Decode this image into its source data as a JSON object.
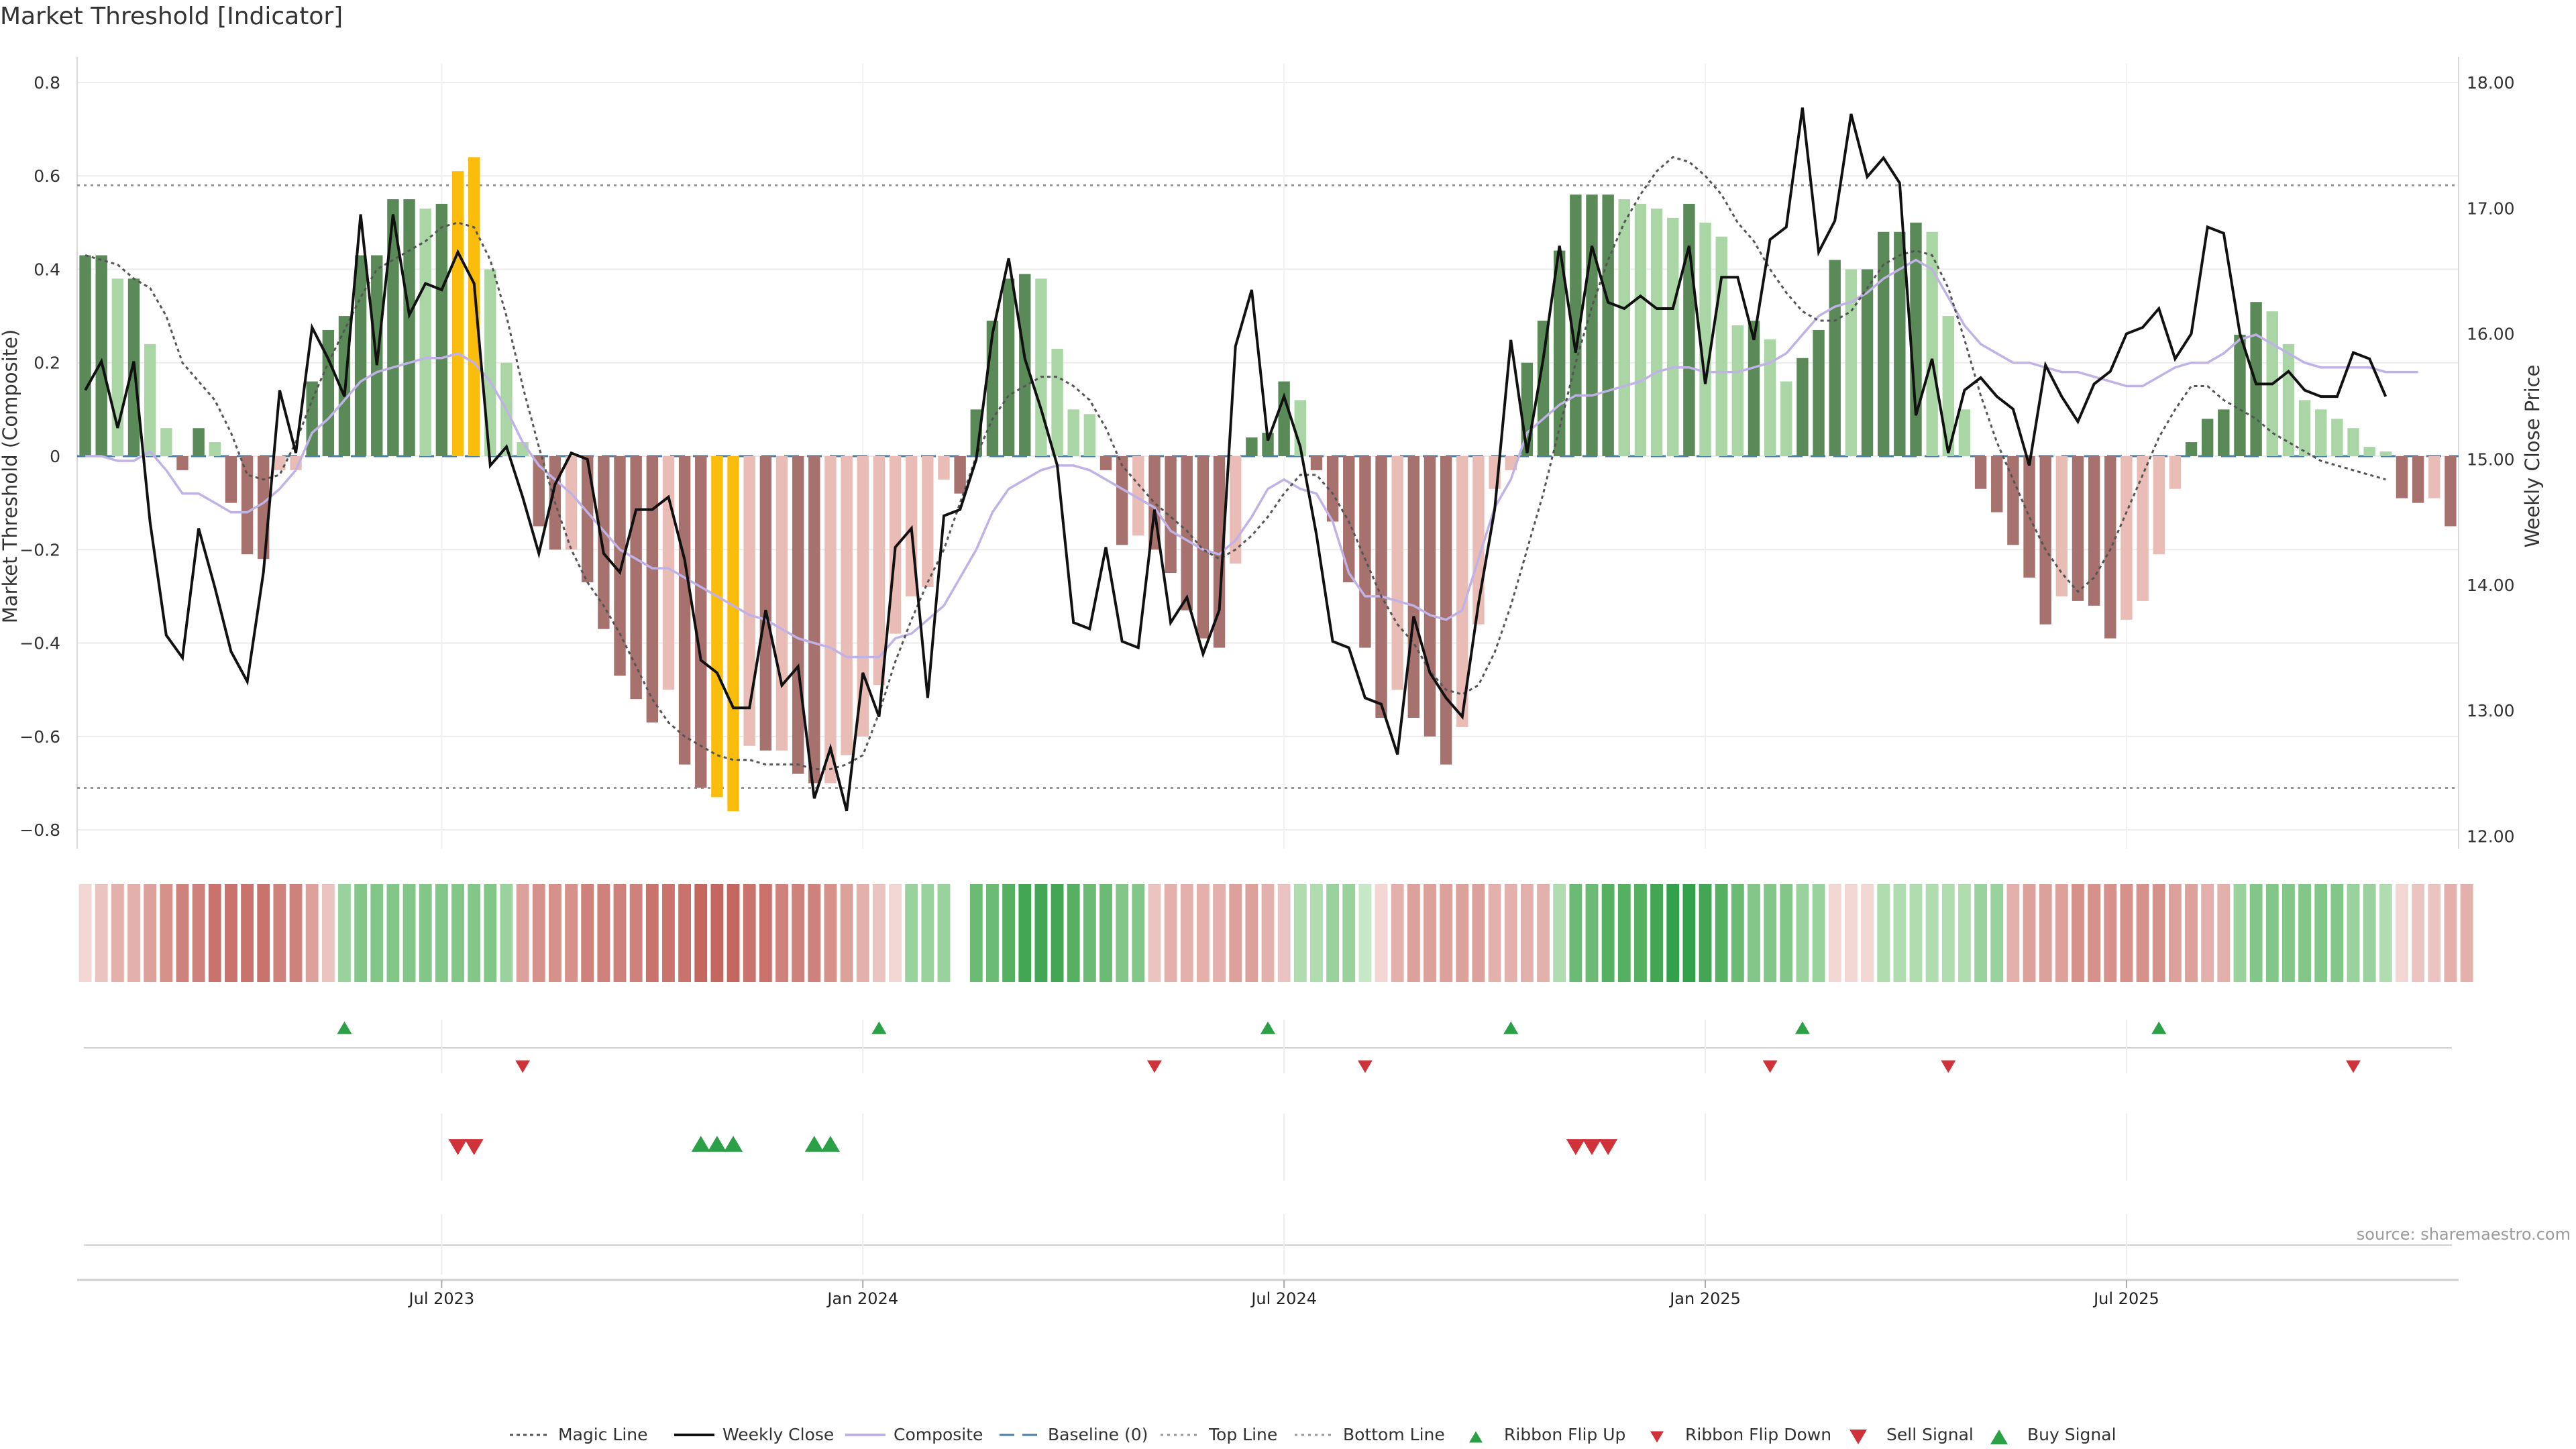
{
  "title": "Market Threshold [Indicator]",
  "source": "source: sharemaestro.com",
  "chart_data": {
    "type": "bar",
    "title": "Market Threshold [Indicator]",
    "ylabel_left": "Market Threshold (Composite)",
    "ylabel_right": "Weekly Close Price",
    "ylim_left": [
      -0.84,
      0.84
    ],
    "ylim_right": [
      11.9,
      18.15
    ],
    "left_ticks": [
      {
        "v": 0.8,
        "t": "0.8"
      },
      {
        "v": 0.6,
        "t": "0.6"
      },
      {
        "v": 0.4,
        "t": "0.4"
      },
      {
        "v": 0.2,
        "t": "0.2"
      },
      {
        "v": 0,
        "t": "0"
      },
      {
        "v": -0.2,
        "t": "−0.2"
      },
      {
        "v": -0.4,
        "t": "−0.4"
      },
      {
        "v": -0.6,
        "t": "−0.6"
      },
      {
        "v": -0.8,
        "t": "−0.8"
      }
    ],
    "right_ticks": [
      "12.00",
      "13.00",
      "14.00",
      "15.00",
      "16.00",
      "17.00",
      "18.00"
    ],
    "x_ticks": [
      {
        "i": 22,
        "t": "Jul 2023"
      },
      {
        "i": 48,
        "t": "Jan 2024"
      },
      {
        "i": 74,
        "t": "Jul 2024"
      },
      {
        "i": 100,
        "t": "Jan 2025"
      },
      {
        "i": 126,
        "t": "Jul 2025"
      }
    ],
    "top_line": 0.58,
    "bottom_line": -0.71,
    "baseline": 0,
    "composite_bars": [
      0.43,
      0.43,
      0.38,
      0.38,
      0.24,
      0.06,
      -0.03,
      0.06,
      0.03,
      -0.1,
      -0.21,
      -0.22,
      -0.03,
      -0.03,
      0.16,
      0.27,
      0.3,
      0.43,
      0.43,
      0.55,
      0.55,
      0.53,
      0.54,
      0.61,
      0.64,
      0.4,
      0.2,
      0.03,
      -0.15,
      -0.2,
      -0.2,
      -0.27,
      -0.37,
      -0.47,
      -0.52,
      -0.57,
      -0.5,
      -0.66,
      -0.71,
      -0.73,
      -0.76,
      -0.62,
      -0.63,
      -0.63,
      -0.68,
      -0.7,
      -0.7,
      -0.64,
      -0.6,
      -0.49,
      -0.38,
      -0.3,
      -0.28,
      -0.05,
      -0.08,
      0.1,
      0.29,
      0.38,
      0.39,
      0.38,
      0.23,
      0.1,
      0.09,
      -0.03,
      -0.19,
      -0.17,
      -0.2,
      -0.25,
      -0.33,
      -0.39,
      -0.41,
      -0.23,
      0.04,
      0.05,
      0.16,
      0.12,
      -0.03,
      -0.14,
      -0.27,
      -0.41,
      -0.56,
      -0.5,
      -0.56,
      -0.6,
      -0.66,
      -0.58,
      -0.36,
      -0.07,
      -0.03,
      0.2,
      0.29,
      0.44,
      0.56,
      0.56,
      0.56,
      0.55,
      0.54,
      0.53,
      0.51,
      0.54,
      0.5,
      0.47,
      0.28,
      0.29,
      0.25,
      0.16,
      0.21,
      0.27,
      0.42,
      0.4,
      0.4,
      0.48,
      0.48,
      0.5,
      0.48,
      0.3,
      0.1,
      -0.07,
      -0.12,
      -0.19,
      -0.26,
      -0.36,
      -0.3,
      -0.31,
      -0.32,
      -0.39,
      -0.35,
      -0.31,
      -0.21,
      -0.07,
      0.03,
      0.08,
      0.1,
      0.26,
      0.33,
      0.31,
      0.24,
      0.12,
      0.1,
      0.08,
      0.06,
      0.02,
      0.01,
      -0.09,
      -0.1,
      -0.09,
      -0.15
    ],
    "weekly_close": [
      15.55,
      15.78,
      15.25,
      15.78,
      14.5,
      13.6,
      13.42,
      14.45,
      13.98,
      13.47,
      13.23,
      14.1,
      15.55,
      15.05,
      16.05,
      15.8,
      15.5,
      16.95,
      15.75,
      16.95,
      16.15,
      16.4,
      16.35,
      16.65,
      16.4,
      14.95,
      15.1,
      14.7,
      14.25,
      14.8,
      15.05,
      15.0,
      14.25,
      14.1,
      14.6,
      14.6,
      14.7,
      14.2,
      13.4,
      13.3,
      13.02,
      13.02,
      13.8,
      13.2,
      13.35,
      12.3,
      12.7,
      12.2,
      13.3,
      12.95,
      14.3,
      14.45,
      13.1,
      14.55,
      14.6,
      15.0,
      16.0,
      16.6,
      15.8,
      15.4,
      14.95,
      13.7,
      13.65,
      14.3,
      13.55,
      13.5,
      14.6,
      13.7,
      13.9,
      13.45,
      13.8,
      15.9,
      16.35,
      15.15,
      15.5,
      15.1,
      14.4,
      13.55,
      13.5,
      13.1,
      13.05,
      12.65,
      13.75,
      13.3,
      13.1,
      12.95,
      13.85,
      14.6,
      15.95,
      15.05,
      15.8,
      16.7,
      15.85,
      16.7,
      16.25,
      16.2,
      16.3,
      16.2,
      16.2,
      16.7,
      15.6,
      16.45,
      16.45,
      15.95,
      16.75,
      16.85,
      17.8,
      16.65,
      16.9,
      17.75,
      17.25,
      17.4,
      17.2,
      15.35,
      15.8,
      15.05,
      15.55,
      15.65,
      15.5,
      15.4,
      14.95,
      15.75,
      15.5,
      15.3,
      15.6,
      15.7,
      16.0,
      16.05,
      16.2,
      15.8,
      16.0,
      16.85,
      16.8,
      16.0,
      15.6,
      15.6,
      15.7,
      15.55,
      15.5,
      15.5,
      15.85,
      15.8,
      15.5
    ],
    "magic_line": [
      0.43,
      0.42,
      0.41,
      0.38,
      0.36,
      0.3,
      0.2,
      0.16,
      0.12,
      0.05,
      -0.04,
      -0.05,
      -0.04,
      0.03,
      0.12,
      0.2,
      0.27,
      0.34,
      0.4,
      0.42,
      0.44,
      0.46,
      0.49,
      0.5,
      0.49,
      0.42,
      0.3,
      0.15,
      0.02,
      -0.1,
      -0.2,
      -0.27,
      -0.32,
      -0.38,
      -0.45,
      -0.52,
      -0.57,
      -0.6,
      -0.62,
      -0.64,
      -0.65,
      -0.65,
      -0.66,
      -0.66,
      -0.66,
      -0.67,
      -0.67,
      -0.66,
      -0.64,
      -0.55,
      -0.44,
      -0.35,
      -0.27,
      -0.2,
      -0.1,
      0.0,
      0.08,
      0.13,
      0.15,
      0.17,
      0.17,
      0.15,
      0.12,
      0.06,
      -0.02,
      -0.06,
      -0.1,
      -0.13,
      -0.16,
      -0.2,
      -0.22,
      -0.2,
      -0.17,
      -0.13,
      -0.08,
      -0.04,
      -0.04,
      -0.08,
      -0.14,
      -0.22,
      -0.3,
      -0.36,
      -0.4,
      -0.46,
      -0.5,
      -0.51,
      -0.49,
      -0.42,
      -0.32,
      -0.2,
      -0.08,
      0.06,
      0.2,
      0.32,
      0.42,
      0.5,
      0.56,
      0.61,
      0.64,
      0.63,
      0.6,
      0.56,
      0.5,
      0.46,
      0.4,
      0.35,
      0.31,
      0.29,
      0.29,
      0.31,
      0.36,
      0.41,
      0.43,
      0.44,
      0.43,
      0.36,
      0.25,
      0.13,
      0.03,
      -0.05,
      -0.13,
      -0.2,
      -0.25,
      -0.29,
      -0.26,
      -0.2,
      -0.12,
      -0.04,
      0.04,
      0.1,
      0.15,
      0.15,
      0.12,
      0.1,
      0.08,
      0.05,
      0.03,
      0.01,
      -0.01,
      -0.02,
      -0.03,
      -0.04,
      -0.05
    ],
    "composite_line": [
      0.0,
      0.0,
      -0.01,
      -0.01,
      0.01,
      -0.03,
      -0.08,
      -0.08,
      -0.1,
      -0.12,
      -0.12,
      -0.1,
      -0.07,
      -0.03,
      0.05,
      0.08,
      0.12,
      0.16,
      0.18,
      0.19,
      0.2,
      0.21,
      0.21,
      0.22,
      0.2,
      0.16,
      0.1,
      0.03,
      -0.02,
      -0.05,
      -0.08,
      -0.12,
      -0.16,
      -0.2,
      -0.22,
      -0.24,
      -0.24,
      -0.26,
      -0.28,
      -0.3,
      -0.32,
      -0.34,
      -0.35,
      -0.37,
      -0.39,
      -0.4,
      -0.41,
      -0.43,
      -0.43,
      -0.43,
      -0.39,
      -0.38,
      -0.35,
      -0.32,
      -0.26,
      -0.2,
      -0.12,
      -0.07,
      -0.05,
      -0.03,
      -0.02,
      -0.02,
      -0.03,
      -0.05,
      -0.07,
      -0.09,
      -0.11,
      -0.16,
      -0.18,
      -0.2,
      -0.21,
      -0.18,
      -0.13,
      -0.07,
      -0.05,
      -0.07,
      -0.08,
      -0.14,
      -0.25,
      -0.3,
      -0.3,
      -0.31,
      -0.32,
      -0.34,
      -0.35,
      -0.33,
      -0.22,
      -0.11,
      -0.05,
      0.05,
      0.08,
      0.11,
      0.13,
      0.13,
      0.14,
      0.15,
      0.16,
      0.18,
      0.19,
      0.19,
      0.18,
      0.18,
      0.18,
      0.19,
      0.2,
      0.22,
      0.26,
      0.3,
      0.32,
      0.33,
      0.35,
      0.38,
      0.4,
      0.42,
      0.4,
      0.34,
      0.28,
      0.24,
      0.22,
      0.2,
      0.2,
      0.19,
      0.18,
      0.18,
      0.17,
      0.16,
      0.15,
      0.15,
      0.17,
      0.19,
      0.2,
      0.2,
      0.22,
      0.25,
      0.26,
      0.24,
      0.22,
      0.2,
      0.19,
      0.19,
      0.19,
      0.19,
      0.18,
      0.18,
      0.18
    ],
    "signal_strip": [
      1,
      2,
      3,
      3,
      4,
      5,
      6,
      6,
      7,
      7,
      7,
      7,
      6,
      6,
      4,
      2,
      -3,
      -4,
      -4,
      -4,
      -4,
      -4,
      -4,
      -4,
      -4,
      -4,
      -3,
      4,
      5,
      5,
      5,
      6,
      6,
      6,
      6,
      7,
      7,
      7,
      8,
      8,
      8,
      7,
      7,
      6,
      6,
      6,
      5,
      4,
      3,
      2,
      1,
      -3,
      -3,
      -3,
      null,
      -5,
      -5,
      -6,
      -7,
      -7,
      -7,
      -6,
      -5,
      -5,
      -4,
      -4,
      2,
      3,
      3,
      3,
      3,
      4,
      4,
      3,
      2,
      -2,
      -2,
      -3,
      -3,
      -1,
      1,
      3,
      4,
      4,
      4,
      4,
      4,
      3,
      3,
      3,
      3,
      -2,
      -5,
      -5,
      -6,
      -6,
      -6,
      -7,
      -8,
      -8,
      -7,
      -6,
      -5,
      -4,
      -4,
      -4,
      -3,
      -3,
      1,
      1,
      1,
      -2,
      -2,
      -2,
      -2,
      -2,
      -2,
      -3,
      -3,
      3,
      4,
      4,
      4,
      5,
      5,
      5,
      5,
      5,
      5,
      4,
      4,
      3,
      3,
      -3,
      -4,
      -4,
      -4,
      -4,
      -4,
      -4,
      -3,
      -3,
      -2,
      1,
      2,
      2,
      3,
      3
    ],
    "ribbon_flip_up": [
      16,
      49,
      73,
      88,
      106,
      128
    ],
    "ribbon_flip_down": [
      27,
      66,
      79,
      104,
      115,
      140
    ],
    "sell_signal": [
      23,
      24,
      92,
      93,
      94
    ],
    "buy_signal": [
      38,
      39,
      40,
      45,
      46
    ],
    "legend": [
      {
        "key": "magic",
        "label": "Magic Line"
      },
      {
        "key": "close",
        "label": "Weekly Close"
      },
      {
        "key": "comp",
        "label": "Composite"
      },
      {
        "key": "base",
        "label": "Baseline (0)"
      },
      {
        "key": "top",
        "label": "Top Line"
      },
      {
        "key": "bottom",
        "label": "Bottom Line"
      },
      {
        "key": "flipup",
        "label": "Ribbon Flip Up"
      },
      {
        "key": "flipdown",
        "label": "Ribbon Flip Down"
      },
      {
        "key": "sell",
        "label": "Sell Signal"
      },
      {
        "key": "buy",
        "label": "Buy Signal"
      }
    ],
    "colors": {
      "bar_pos_light": "#aad6a6",
      "bar_pos_dark": "#5a8a58",
      "bar_neg_light": "#e9bcb6",
      "bar_neg_dark": "#a7716d",
      "bar_extreme": "#fbbd0b",
      "close_line": "#111111",
      "composite_line": "#c0b2e6",
      "magic_line": "#555555",
      "baseline": "#4a7fa6",
      "ref_line": "#999999",
      "green_marker": "#2ba047",
      "red_marker": "#d0323a"
    }
  }
}
